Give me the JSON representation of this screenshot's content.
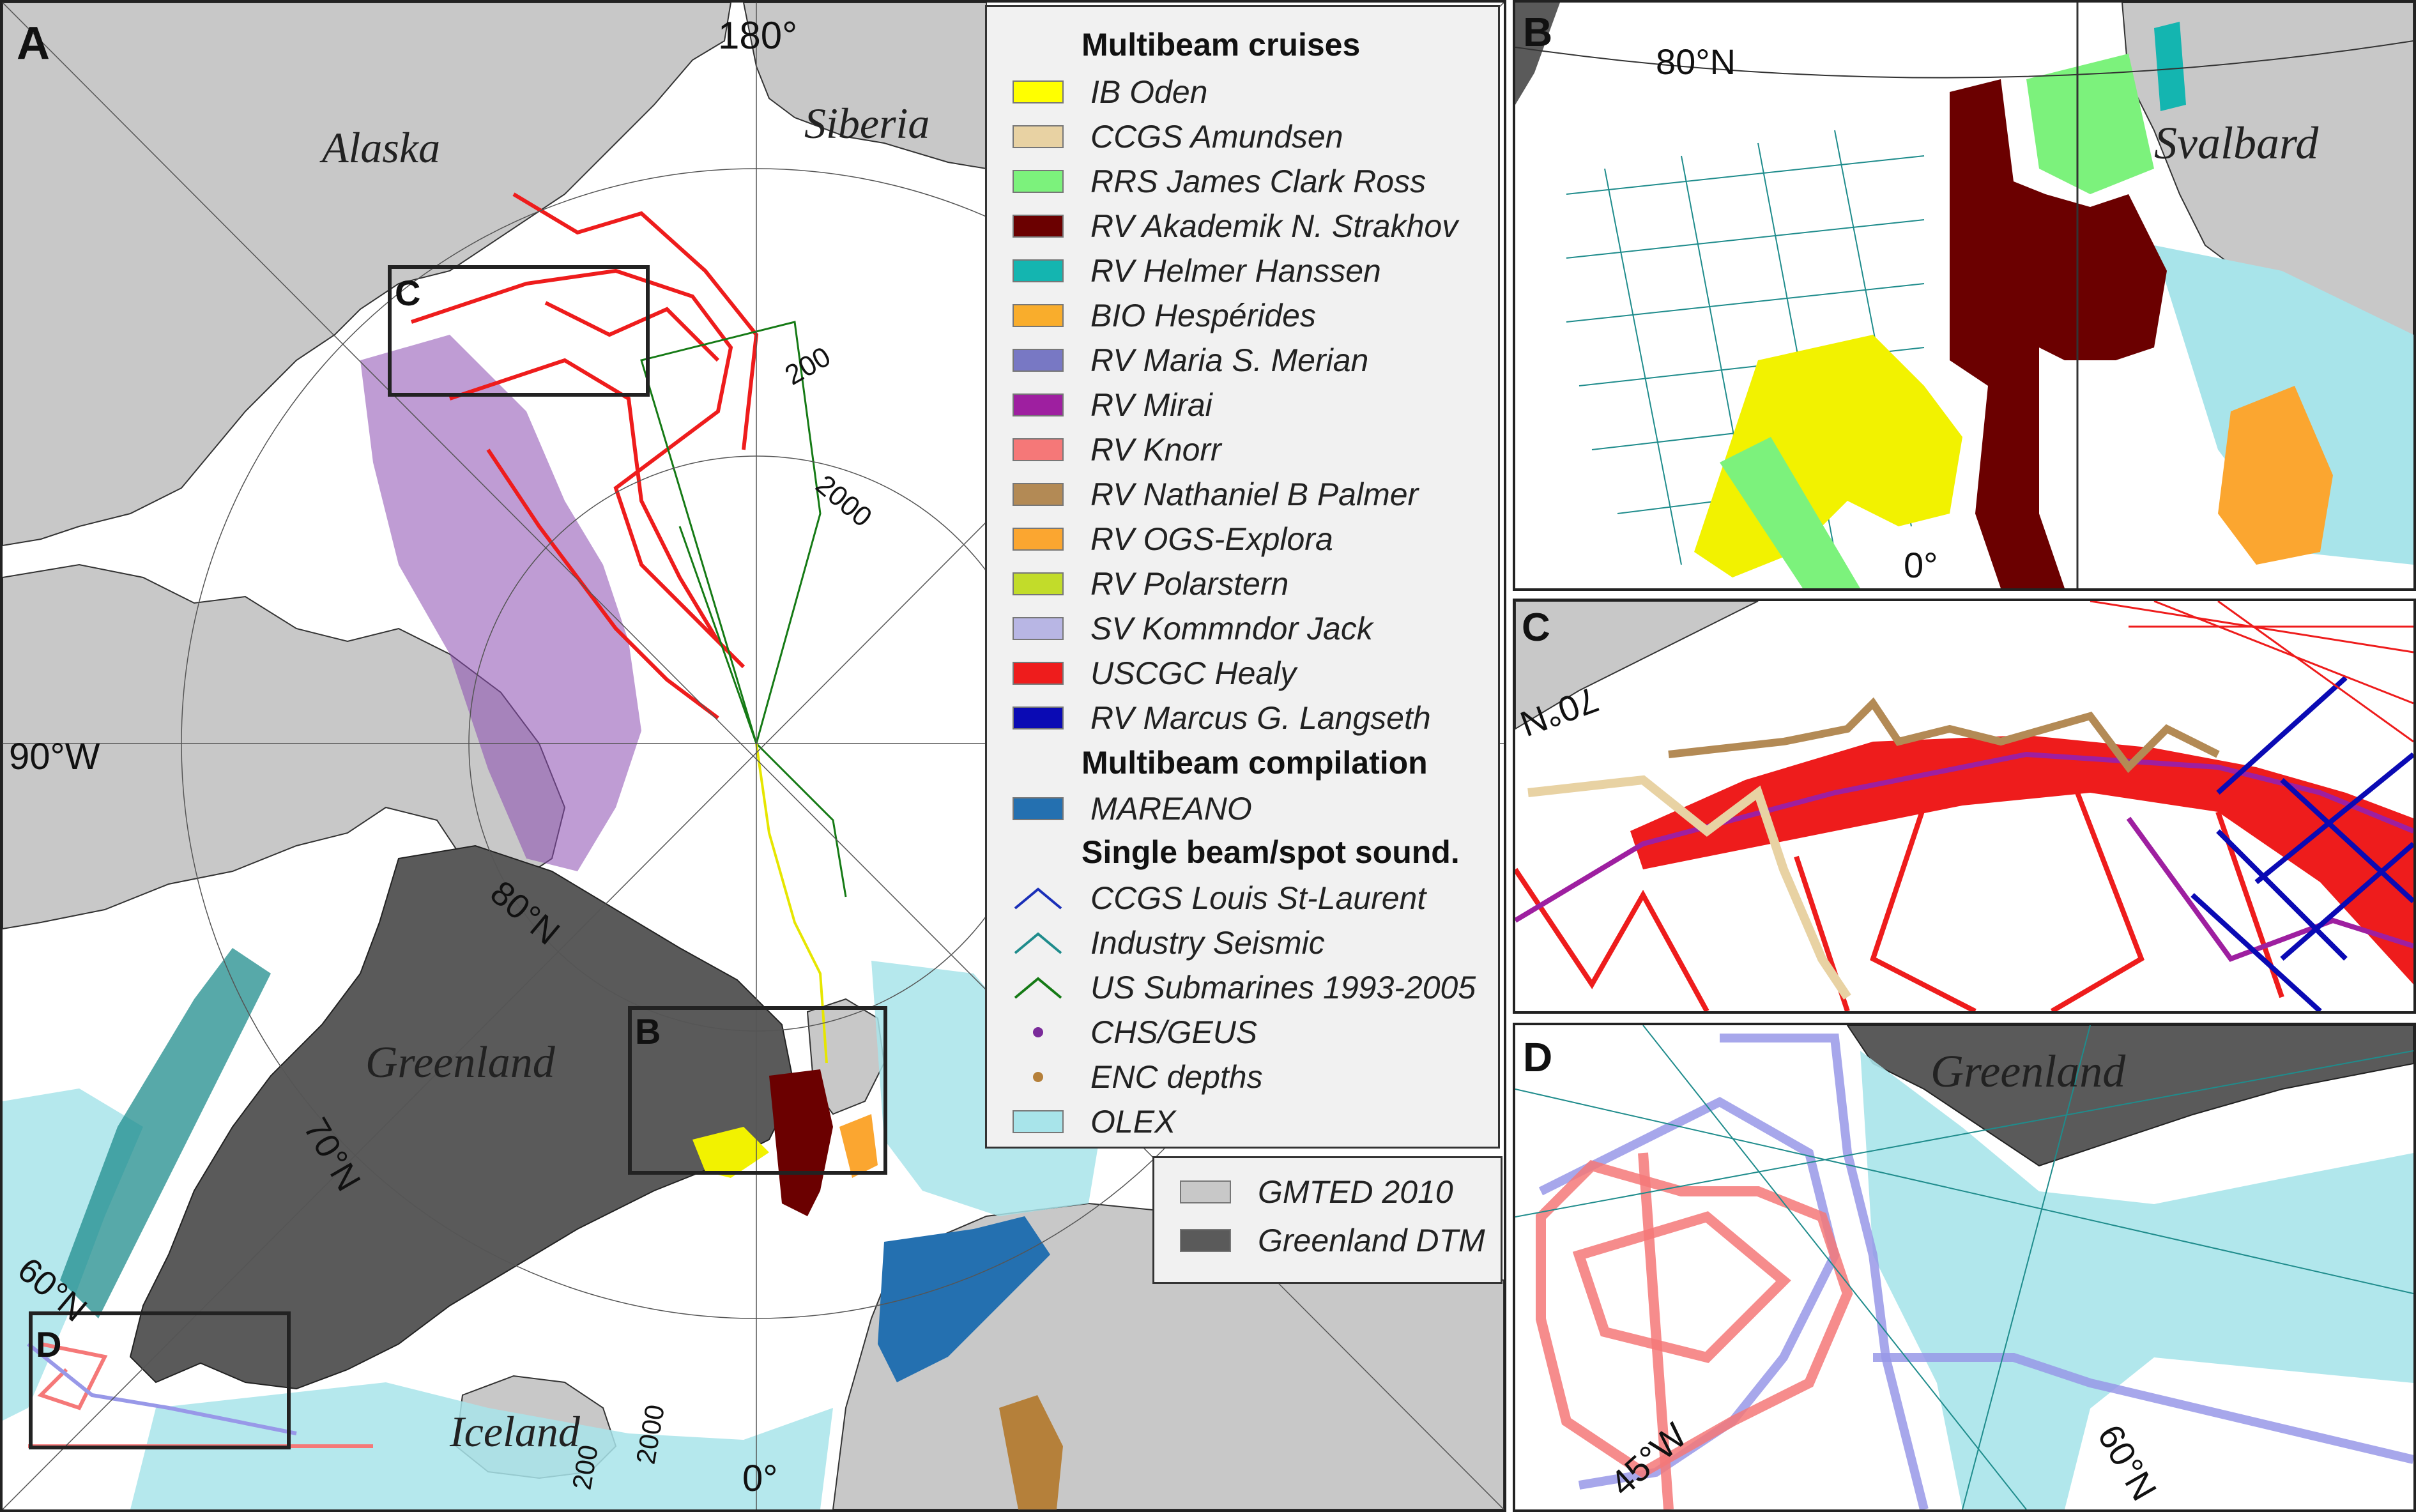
{
  "panels": {
    "a": {
      "letter": "A",
      "regions": {
        "alaska": "Alaska",
        "siberia": "Siberia",
        "greenland": "Greenland",
        "iceland": "Iceland"
      },
      "graticule": {
        "lon_180": "180°",
        "lon_90w": "90°W",
        "lon_0": "0°",
        "lat_80n": "80°N",
        "lat_70n": "70°N",
        "lat_60n": "60°N"
      },
      "contours": {
        "c200_a": "200",
        "c2000_a": "2000",
        "c2000_b": "2000",
        "c200_b": "200"
      },
      "inset_boxes": {
        "b": "B",
        "c": "C",
        "d": "D"
      }
    },
    "b": {
      "letter": "B",
      "graticule_lat": "80°N",
      "graticule_lon": "0°",
      "region": "Svalbard"
    },
    "c": {
      "letter": "C",
      "graticule_lat": "70°N"
    },
    "d": {
      "letter": "D",
      "region": "Greenland",
      "graticule_lon": "45°W",
      "graticule_lat": "60°N"
    }
  },
  "legend": {
    "multibeam_heading": "Multibeam cruises",
    "multibeam": [
      {
        "label": "IB Oden",
        "color": "#ffff00"
      },
      {
        "label": "CCGS Amundsen",
        "color": "#e8d2a3"
      },
      {
        "label": "RRS James Clark Ross",
        "color": "#7cf27c"
      },
      {
        "label": "RV Akademik N. Strakhov",
        "color": "#6b0000"
      },
      {
        "label": "RV Helmer Hanssen",
        "color": "#14b5b0"
      },
      {
        "label": "BIO Hespérides",
        "color": "#f9ad2c"
      },
      {
        "label": "RV Maria S. Merian",
        "color": "#7878c4"
      },
      {
        "label": "RV Mirai",
        "color": "#9e1fa0"
      },
      {
        "label": "RV Knorr",
        "color": "#f57878"
      },
      {
        "label": "RV Nathaniel B Palmer",
        "color": "#b38a55"
      },
      {
        "label": "RV OGS-Explora",
        "color": "#fba630"
      },
      {
        "label": "RV Polarstern",
        "color": "#c2dc2a"
      },
      {
        "label": "SV Kommndor Jack",
        "color": "#b8b6e4"
      },
      {
        "label": "USCGC Healy",
        "color": "#ee1c1c"
      },
      {
        "label": "RV Marcus G. Langseth",
        "color": "#0a0ab4"
      }
    ],
    "compilation_heading": "Multibeam compilation",
    "compilation": [
      {
        "label": "MAREANO",
        "color": "#2470b0"
      }
    ],
    "singlebeam_heading": "Single beam/spot sound.",
    "singlebeam": [
      {
        "label": "CCGS Louis St-Laurent",
        "color": "#1a2fb8",
        "symbol": "line"
      },
      {
        "label": "Industry Seismic",
        "color": "#1f8c8c",
        "symbol": "line"
      },
      {
        "label": "US Submarines 1993-2005",
        "color": "#157a15",
        "symbol": "line"
      },
      {
        "label": "CHS/GEUS",
        "color": "#7a2b9a",
        "symbol": "dot"
      },
      {
        "label": "ENC depths",
        "color": "#b5803a",
        "symbol": "dot"
      },
      {
        "label": "OLEX",
        "color": "#a8e4ea",
        "symbol": "box"
      }
    ],
    "topography": [
      {
        "label": "GMTED 2010",
        "color": "#c8c8c8"
      },
      {
        "label": "Greenland DTM",
        "color": "#5a5a5a"
      }
    ]
  }
}
